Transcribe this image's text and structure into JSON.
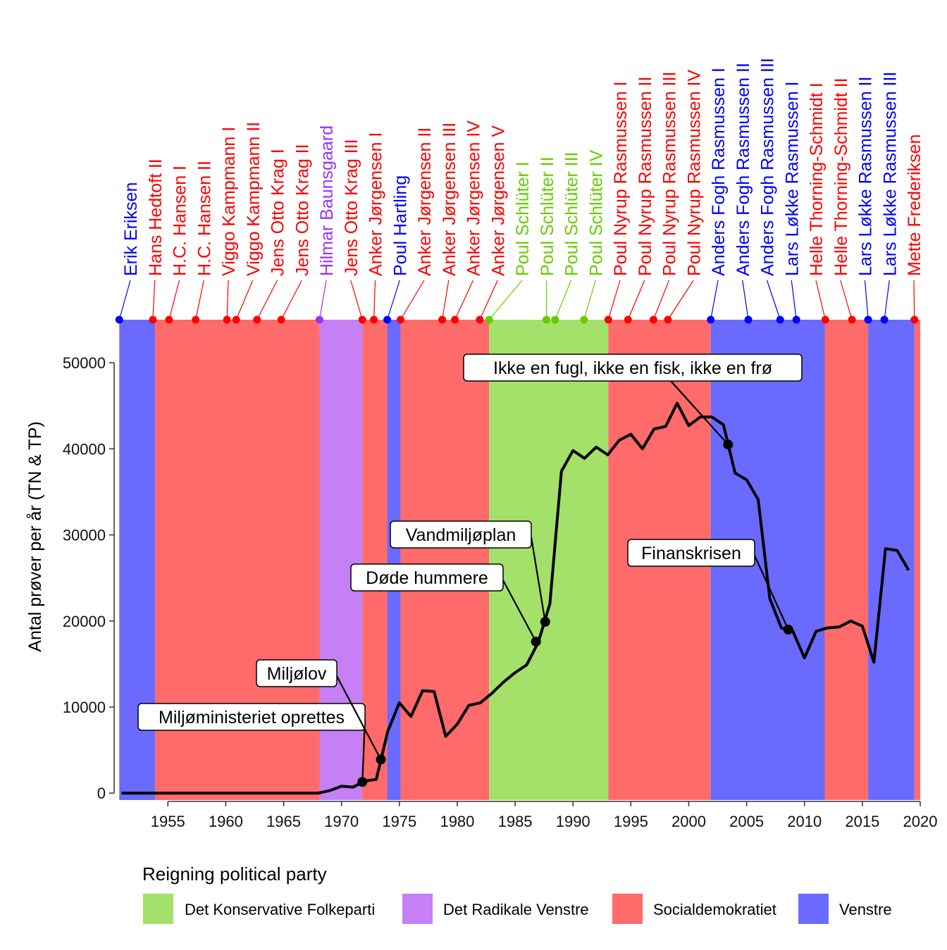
{
  "chart_data": {
    "type": "line",
    "ylabel": "Antal prøver per år (TN & TP)",
    "xlabel": "",
    "xlim": [
      1950.6,
      2020.0
    ],
    "ylim": [
      -800,
      55000
    ],
    "x_ticks": [
      1955,
      1960,
      1965,
      1970,
      1975,
      1980,
      1985,
      1990,
      1995,
      2000,
      2005,
      2010,
      2015,
      2020
    ],
    "y_ticks": [
      0,
      10000,
      20000,
      30000,
      40000,
      50000
    ],
    "party_colors": {
      "Det Konservative Folkeparti": "#a3e16a",
      "Det Radikale Venstre": "#c67ff5",
      "Socialdemokratiet": "#ff6a6a",
      "Venstre": "#6a6aff"
    },
    "label_colors": {
      "Det Konservative Folkeparti": "#66cc00",
      "Det Radikale Venstre": "#9933ff",
      "Socialdemokratiet": "#ff0000",
      "Venstre": "#0000ff"
    },
    "party_periods": [
      {
        "party": "Venstre",
        "start": 1950.8,
        "end": 1953.9
      },
      {
        "party": "Socialdemokratiet",
        "start": 1953.9,
        "end": 1968.1
      },
      {
        "party": "Det Radikale Venstre",
        "start": 1968.1,
        "end": 1971.8
      },
      {
        "party": "Socialdemokratiet",
        "start": 1971.8,
        "end": 1973.95
      },
      {
        "party": "Venstre",
        "start": 1973.95,
        "end": 1975.1
      },
      {
        "party": "Socialdemokratiet",
        "start": 1975.1,
        "end": 1982.75
      },
      {
        "party": "Det Konservative Folkeparti",
        "start": 1982.75,
        "end": 1993.05
      },
      {
        "party": "Socialdemokratiet",
        "start": 1993.05,
        "end": 2001.9
      },
      {
        "party": "Venstre",
        "start": 2001.9,
        "end": 2011.75
      },
      {
        "party": "Socialdemokratiet",
        "start": 2011.75,
        "end": 2015.5
      },
      {
        "party": "Venstre",
        "start": 2015.5,
        "end": 2019.5
      },
      {
        "party": "Socialdemokratiet",
        "start": 2019.5,
        "end": 2020.0
      }
    ],
    "governments": [
      {
        "name": "Erik Eriksen",
        "party": "Venstre",
        "start": 1950.8
      },
      {
        "name": "Hans Hedtoft II",
        "party": "Socialdemokratiet",
        "start": 1953.7
      },
      {
        "name": "H.C. Hansen I",
        "party": "Socialdemokratiet",
        "start": 1955.1
      },
      {
        "name": "H.C. Hansen II",
        "party": "Socialdemokratiet",
        "start": 1957.4
      },
      {
        "name": "Viggo Kampmann I",
        "party": "Socialdemokratiet",
        "start": 1960.1
      },
      {
        "name": "Viggo Kampmann II",
        "party": "Socialdemokratiet",
        "start": 1960.9
      },
      {
        "name": "Jens Otto Krag I",
        "party": "Socialdemokratiet",
        "start": 1962.7
      },
      {
        "name": "Jens Otto Krag II",
        "party": "Socialdemokratiet",
        "start": 1964.8
      },
      {
        "name": "Hilmar Baunsgaard",
        "party": "Det Radikale Venstre",
        "start": 1968.1
      },
      {
        "name": "Jens Otto Krag III",
        "party": "Socialdemokratiet",
        "start": 1971.8
      },
      {
        "name": "Anker Jørgensen I",
        "party": "Socialdemokratiet",
        "start": 1972.8
      },
      {
        "name": "Poul Hartling",
        "party": "Venstre",
        "start": 1973.95
      },
      {
        "name": "Anker Jørgensen II",
        "party": "Socialdemokratiet",
        "start": 1975.1
      },
      {
        "name": "Anker Jørgensen III",
        "party": "Socialdemokratiet",
        "start": 1978.7
      },
      {
        "name": "Anker Jørgensen IV",
        "party": "Socialdemokratiet",
        "start": 1979.8
      },
      {
        "name": "Anker Jørgensen V",
        "party": "Socialdemokratiet",
        "start": 1981.95
      },
      {
        "name": "Poul Schlüter I",
        "party": "Det Konservative Folkeparti",
        "start": 1982.75
      },
      {
        "name": "Poul Schlüter II",
        "party": "Det Konservative Folkeparti",
        "start": 1987.7
      },
      {
        "name": "Poul Schlüter III",
        "party": "Det Konservative Folkeparti",
        "start": 1988.45
      },
      {
        "name": "Poul Schlüter IV",
        "party": "Det Konservative Folkeparti",
        "start": 1990.95
      },
      {
        "name": "Poul Nyrup Rasmussen I",
        "party": "Socialdemokratiet",
        "start": 1993.05
      },
      {
        "name": "Poul Nyrup Rasmussen II",
        "party": "Socialdemokratiet",
        "start": 1994.75
      },
      {
        "name": "Poul Nyrup Rasmussen III",
        "party": "Socialdemokratiet",
        "start": 1996.95
      },
      {
        "name": "Poul Nyrup Rasmussen IV",
        "party": "Socialdemokratiet",
        "start": 1998.2
      },
      {
        "name": "Anders Fogh Rasmussen I",
        "party": "Venstre",
        "start": 2001.9
      },
      {
        "name": "Anders Fogh Rasmussen II",
        "party": "Venstre",
        "start": 2005.15
      },
      {
        "name": "Anders Fogh Rasmussen III",
        "party": "Venstre",
        "start": 2007.9
      },
      {
        "name": "Lars Løkke Rasmussen I",
        "party": "Venstre",
        "start": 2009.3
      },
      {
        "name": "Helle Thorning-Schmidt I",
        "party": "Socialdemokratiet",
        "start": 2011.8
      },
      {
        "name": "Helle Thorning-Schmidt II",
        "party": "Socialdemokratiet",
        "start": 2014.1
      },
      {
        "name": "Lars Løkke Rasmussen II",
        "party": "Venstre",
        "start": 2015.5
      },
      {
        "name": "Lars Løkke Rasmussen III",
        "party": "Venstre",
        "start": 2016.9
      },
      {
        "name": "Mette Frederiksen",
        "party": "Socialdemokratiet",
        "start": 2019.5
      }
    ],
    "series": [
      {
        "x": [
          1951,
          1952,
          1953,
          1954,
          1955,
          1956,
          1957,
          1958,
          1959,
          1960,
          1961,
          1962,
          1963,
          1964,
          1965,
          1966,
          1967,
          1968,
          1969,
          1970,
          1971,
          1972,
          1973,
          1974,
          1975,
          1976,
          1977,
          1978,
          1979,
          1980,
          1981,
          1982,
          1983,
          1984,
          1985,
          1986,
          1987,
          1988,
          1989,
          1990,
          1991,
          1992,
          1993,
          1994,
          1995,
          1996,
          1997,
          1998,
          1999,
          2000,
          2001,
          2002,
          2003,
          2004,
          2005,
          2006,
          2007,
          2008,
          2009,
          2010,
          2011,
          2012,
          2013,
          2014,
          2015,
          2016,
          2017,
          2018,
          2019
        ],
        "y": [
          0,
          0,
          0,
          0,
          0,
          0,
          0,
          0,
          0,
          0,
          0,
          0,
          0,
          0,
          0,
          0,
          0,
          0,
          300,
          800,
          700,
          1400,
          1600,
          7200,
          10500,
          8900,
          11900,
          11800,
          6600,
          8000,
          10200,
          10500,
          11600,
          12900,
          14000,
          14900,
          17500,
          22000,
          37400,
          39800,
          38900,
          40200,
          39300,
          41000,
          41700,
          40000,
          42300,
          42600,
          45300,
          42700,
          43700,
          43700,
          42800,
          37200,
          36400,
          34100,
          22600,
          19200,
          18800,
          15700,
          18800,
          19200,
          19300,
          20000,
          19400,
          15200,
          28400,
          28200,
          25900
        ]
      }
    ],
    "annotations": [
      {
        "label": "Miljøministeriet oprettes",
        "x": 1971.8,
        "y": 1300
      },
      {
        "label": "Miljølov",
        "x": 1973.4,
        "y": 3900
      },
      {
        "label": "Døde hummere",
        "x": 1986.8,
        "y": 17600
      },
      {
        "label": "Vandmiljøplan",
        "x": 1987.6,
        "y": 19900
      },
      {
        "label": "Ikke en fugl, ikke en fisk, ikke en frø",
        "x": 2003.4,
        "y": 40500
      },
      {
        "label": "Finanskrisen",
        "x": 2008.6,
        "y": 19000
      }
    ],
    "legend": {
      "title": "Reigning political party",
      "position": "bottom",
      "entries": [
        "Det Konservative Folkeparti",
        "Det Radikale Venstre",
        "Socialdemokratiet",
        "Venstre"
      ]
    }
  }
}
